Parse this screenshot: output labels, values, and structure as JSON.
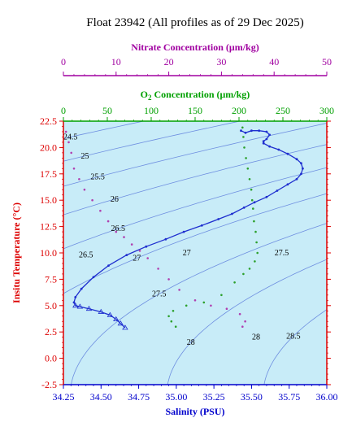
{
  "chart_data": {
    "type": "scatter",
    "title": "Float 23942  (All profiles as of 29 Dec 2025)",
    "colors": {
      "plot_bg": "#c8ecf8",
      "temperature_axis": "#dd0000",
      "salinity_axis": "#0000cc",
      "oxygen_axis": "#00a000",
      "nitrate_axis": "#a000a0",
      "contour": "#6f8fe0",
      "salinity_series": "#1f2fcf",
      "oxygen_series": "#2ca02c",
      "nitrate_series": "#b040b0"
    },
    "axes": {
      "temperature": {
        "label": "Insitu Temperature (°C)",
        "range": [
          -2.5,
          22.5
        ],
        "ticks": [
          "22.5",
          "20.0",
          "17.5",
          "15.0",
          "12.5",
          "10.0",
          "7.5",
          "5.0",
          "2.5",
          "0.0",
          "-2.5"
        ]
      },
      "salinity": {
        "label": "Salinity (PSU)",
        "range": [
          34.25,
          36.0
        ],
        "ticks": [
          "34.25",
          "34.50",
          "34.75",
          "35.00",
          "35.25",
          "35.50",
          "35.75",
          "36.00"
        ]
      },
      "oxygen": {
        "label_main": "O",
        "label_sub": "2",
        "label_rest": " Concentration (μm/kg)",
        "range": [
          0,
          300
        ],
        "ticks": [
          "0",
          "50",
          "100",
          "150",
          "200",
          "250",
          "300"
        ]
      },
      "nitrate": {
        "label": "Nitrate Concentration (μm/kg)",
        "range": [
          0,
          50
        ],
        "ticks": [
          "0",
          "10",
          "20",
          "30",
          "40",
          "50"
        ]
      }
    },
    "density_contours": [
      {
        "label": "24.5",
        "sigma": 24.5,
        "label_t": 21.0
      },
      {
        "label": "25",
        "sigma": 25.0,
        "label_t": 19.2
      },
      {
        "label": "25.5",
        "sigma": 25.5,
        "label_t": 17.2
      },
      {
        "label": "26",
        "sigma": 26.0,
        "label_t": 15.1
      },
      {
        "label": "26.5",
        "sigma": 26.5,
        "label_t": 12.3
      },
      {
        "label": "27",
        "sigma": 27.0,
        "label_t": 9.5
      },
      {
        "label": "27.5",
        "sigma": 27.5,
        "label_t": 6.1
      },
      {
        "label": "28",
        "sigma": 28.0,
        "label_t": 1.5
      },
      {
        "label": "28.5",
        "sigma": 28.5,
        "label_t": 2.1
      }
    ],
    "extra_contour_labels": [
      {
        "label": "26.5",
        "t": 9.8,
        "s": 34.4
      },
      {
        "label": "27",
        "t": 10.0,
        "s": 35.07
      },
      {
        "label": "27.5",
        "t": 10.0,
        "s": 35.7
      },
      {
        "label": "28",
        "t": 2.0,
        "s": 35.53
      }
    ],
    "series": [
      {
        "name": "Salinity",
        "x_axis": "salinity",
        "points": [
          [
            35.43,
            21.6
          ],
          [
            35.46,
            21.4
          ],
          [
            35.5,
            21.6
          ],
          [
            35.55,
            21.6
          ],
          [
            35.6,
            21.5
          ],
          [
            35.62,
            21.2
          ],
          [
            35.6,
            20.8
          ],
          [
            35.58,
            20.6
          ],
          [
            35.58,
            20.4
          ],
          [
            35.62,
            20.1
          ],
          [
            35.68,
            19.8
          ],
          [
            35.74,
            19.4
          ],
          [
            35.8,
            18.9
          ],
          [
            35.83,
            18.5
          ],
          [
            35.84,
            18.0
          ],
          [
            35.83,
            17.5
          ],
          [
            35.8,
            17.0
          ],
          [
            35.74,
            16.5
          ],
          [
            35.67,
            15.9
          ],
          [
            35.6,
            15.3
          ],
          [
            35.52,
            14.8
          ],
          [
            35.45,
            14.3
          ],
          [
            35.37,
            13.7
          ],
          [
            35.28,
            13.2
          ],
          [
            35.17,
            12.6
          ],
          [
            35.05,
            12.0
          ],
          [
            34.93,
            11.3
          ],
          [
            34.8,
            10.6
          ],
          [
            34.67,
            9.8
          ],
          [
            34.55,
            8.8
          ],
          [
            34.45,
            7.7
          ],
          [
            34.37,
            6.6
          ],
          [
            34.33,
            5.8
          ],
          [
            34.32,
            5.3
          ],
          [
            34.33,
            5.0
          ],
          [
            34.36,
            4.9
          ],
          [
            34.42,
            4.7
          ],
          [
            34.5,
            4.4
          ],
          [
            34.56,
            4.1
          ],
          [
            34.6,
            3.7
          ],
          [
            34.63,
            3.3
          ],
          [
            34.66,
            2.9
          ]
        ]
      },
      {
        "name": "Oxygen",
        "x_axis": "oxygen",
        "points": [
          [
            204,
            21.9
          ],
          [
            205,
            21.0
          ],
          [
            206,
            20.0
          ],
          [
            208,
            19.0
          ],
          [
            210,
            18.0
          ],
          [
            212,
            17.0
          ],
          [
            214,
            16.0
          ],
          [
            215,
            15.0
          ],
          [
            216,
            14.2
          ],
          [
            217,
            13.0
          ],
          [
            219,
            12.0
          ],
          [
            220,
            11.0
          ],
          [
            221,
            10.0
          ],
          [
            218,
            9.2
          ],
          [
            212,
            8.5
          ],
          [
            205,
            8.0
          ],
          [
            195,
            7.2
          ],
          [
            180,
            6.0
          ],
          [
            160,
            5.3
          ],
          [
            140,
            5.0
          ],
          [
            125,
            4.5
          ],
          [
            120,
            4.0
          ],
          [
            123,
            3.5
          ],
          [
            128,
            3.0
          ]
        ]
      },
      {
        "name": "Nitrate",
        "x_axis": "nitrate",
        "points": [
          [
            0.5,
            21.5
          ],
          [
            1.0,
            20.5
          ],
          [
            1.5,
            19.5
          ],
          [
            2.0,
            18.0
          ],
          [
            3.0,
            17.0
          ],
          [
            4.0,
            16.0
          ],
          [
            5.5,
            15.0
          ],
          [
            7.0,
            14.0
          ],
          [
            8.5,
            13.0
          ],
          [
            10.0,
            12.0
          ],
          [
            11.5,
            11.5
          ],
          [
            13.0,
            10.8
          ],
          [
            14.5,
            10.2
          ],
          [
            16.0,
            9.5
          ],
          [
            18.0,
            8.5
          ],
          [
            20.0,
            7.5
          ],
          [
            22.0,
            6.5
          ],
          [
            25.0,
            5.5
          ],
          [
            28.0,
            5.0
          ],
          [
            31.0,
            4.7
          ],
          [
            33.5,
            4.2
          ],
          [
            34.5,
            3.5
          ],
          [
            34.0,
            3.0
          ]
        ]
      }
    ]
  }
}
